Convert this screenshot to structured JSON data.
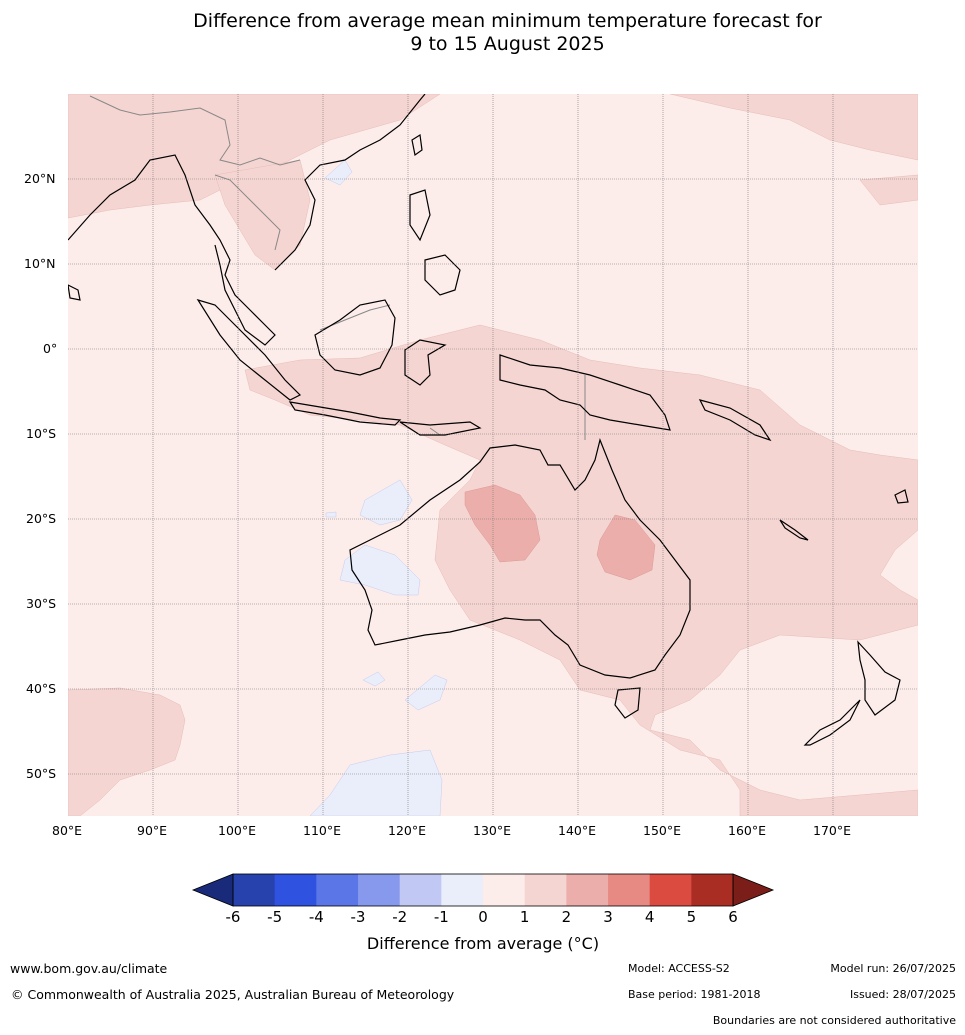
{
  "title": {
    "line1": "Difference from average mean minimum temperature forecast for",
    "line2": "9 to 15 August 2025"
  },
  "map": {
    "extent": {
      "lon": [
        80,
        180
      ],
      "lat": [
        -55,
        30
      ]
    },
    "lat_labels": [
      "20°N",
      "10°N",
      "0°",
      "10°S",
      "20°S",
      "30°S",
      "40°S",
      "50°S"
    ],
    "lon_labels": [
      "80°E",
      "90°E",
      "100°E",
      "110°E",
      "120°E",
      "130°E",
      "140°E",
      "150°E",
      "160°E",
      "170°E"
    ],
    "regions": [
      {
        "name": "background",
        "anomaly": "0 to 1",
        "color": "#fcecea"
      },
      {
        "name": "northern-Australia-and-Indonesia",
        "anomaly": "1 to 2",
        "color": "#f5d5d2"
      },
      {
        "name": "central-Western-Australia",
        "anomaly": "2 to 3",
        "color": "#ecaeaa"
      },
      {
        "name": "Queensland-interior",
        "anomaly": "2 to 3",
        "color": "#ecaeaa"
      },
      {
        "name": "Indian-Ocean-west-of-WA",
        "anomaly": "-1 to 0",
        "color": "#eaedfa"
      },
      {
        "name": "Southern-Ocean-south-of-Australia",
        "anomaly": "-1 to 0",
        "color": "#eaedfa"
      }
    ]
  },
  "colorbar": {
    "tick_labels": [
      "-6",
      "-5",
      "-4",
      "-3",
      "-2",
      "-1",
      "0",
      "1",
      "2",
      "3",
      "4",
      "5",
      "6"
    ],
    "colors": [
      "#2742ad",
      "#2f52e0",
      "#5b76e6",
      "#8799ec",
      "#c0c8f3",
      "#eaedfa",
      "#fcecea",
      "#f5d5d2",
      "#ecaeaa",
      "#e78a83",
      "#dc4b40",
      "#aa2d24"
    ],
    "under_color": "#1a2a7a",
    "over_color": "#7b1d18",
    "label": "Difference from average (°C)"
  },
  "footer": {
    "website": "www.bom.gov.au/climate",
    "copyright": "© Commonwealth of Australia 2025, Australian Bureau of Meteorology",
    "model": "Model: ACCESS-S2",
    "model_run": "Model run: 26/07/2025",
    "base_period": "Base period: 1981-2018",
    "issued": "Issued: 28/07/2025",
    "disclaimer": "Boundaries are not considered authoritative"
  }
}
